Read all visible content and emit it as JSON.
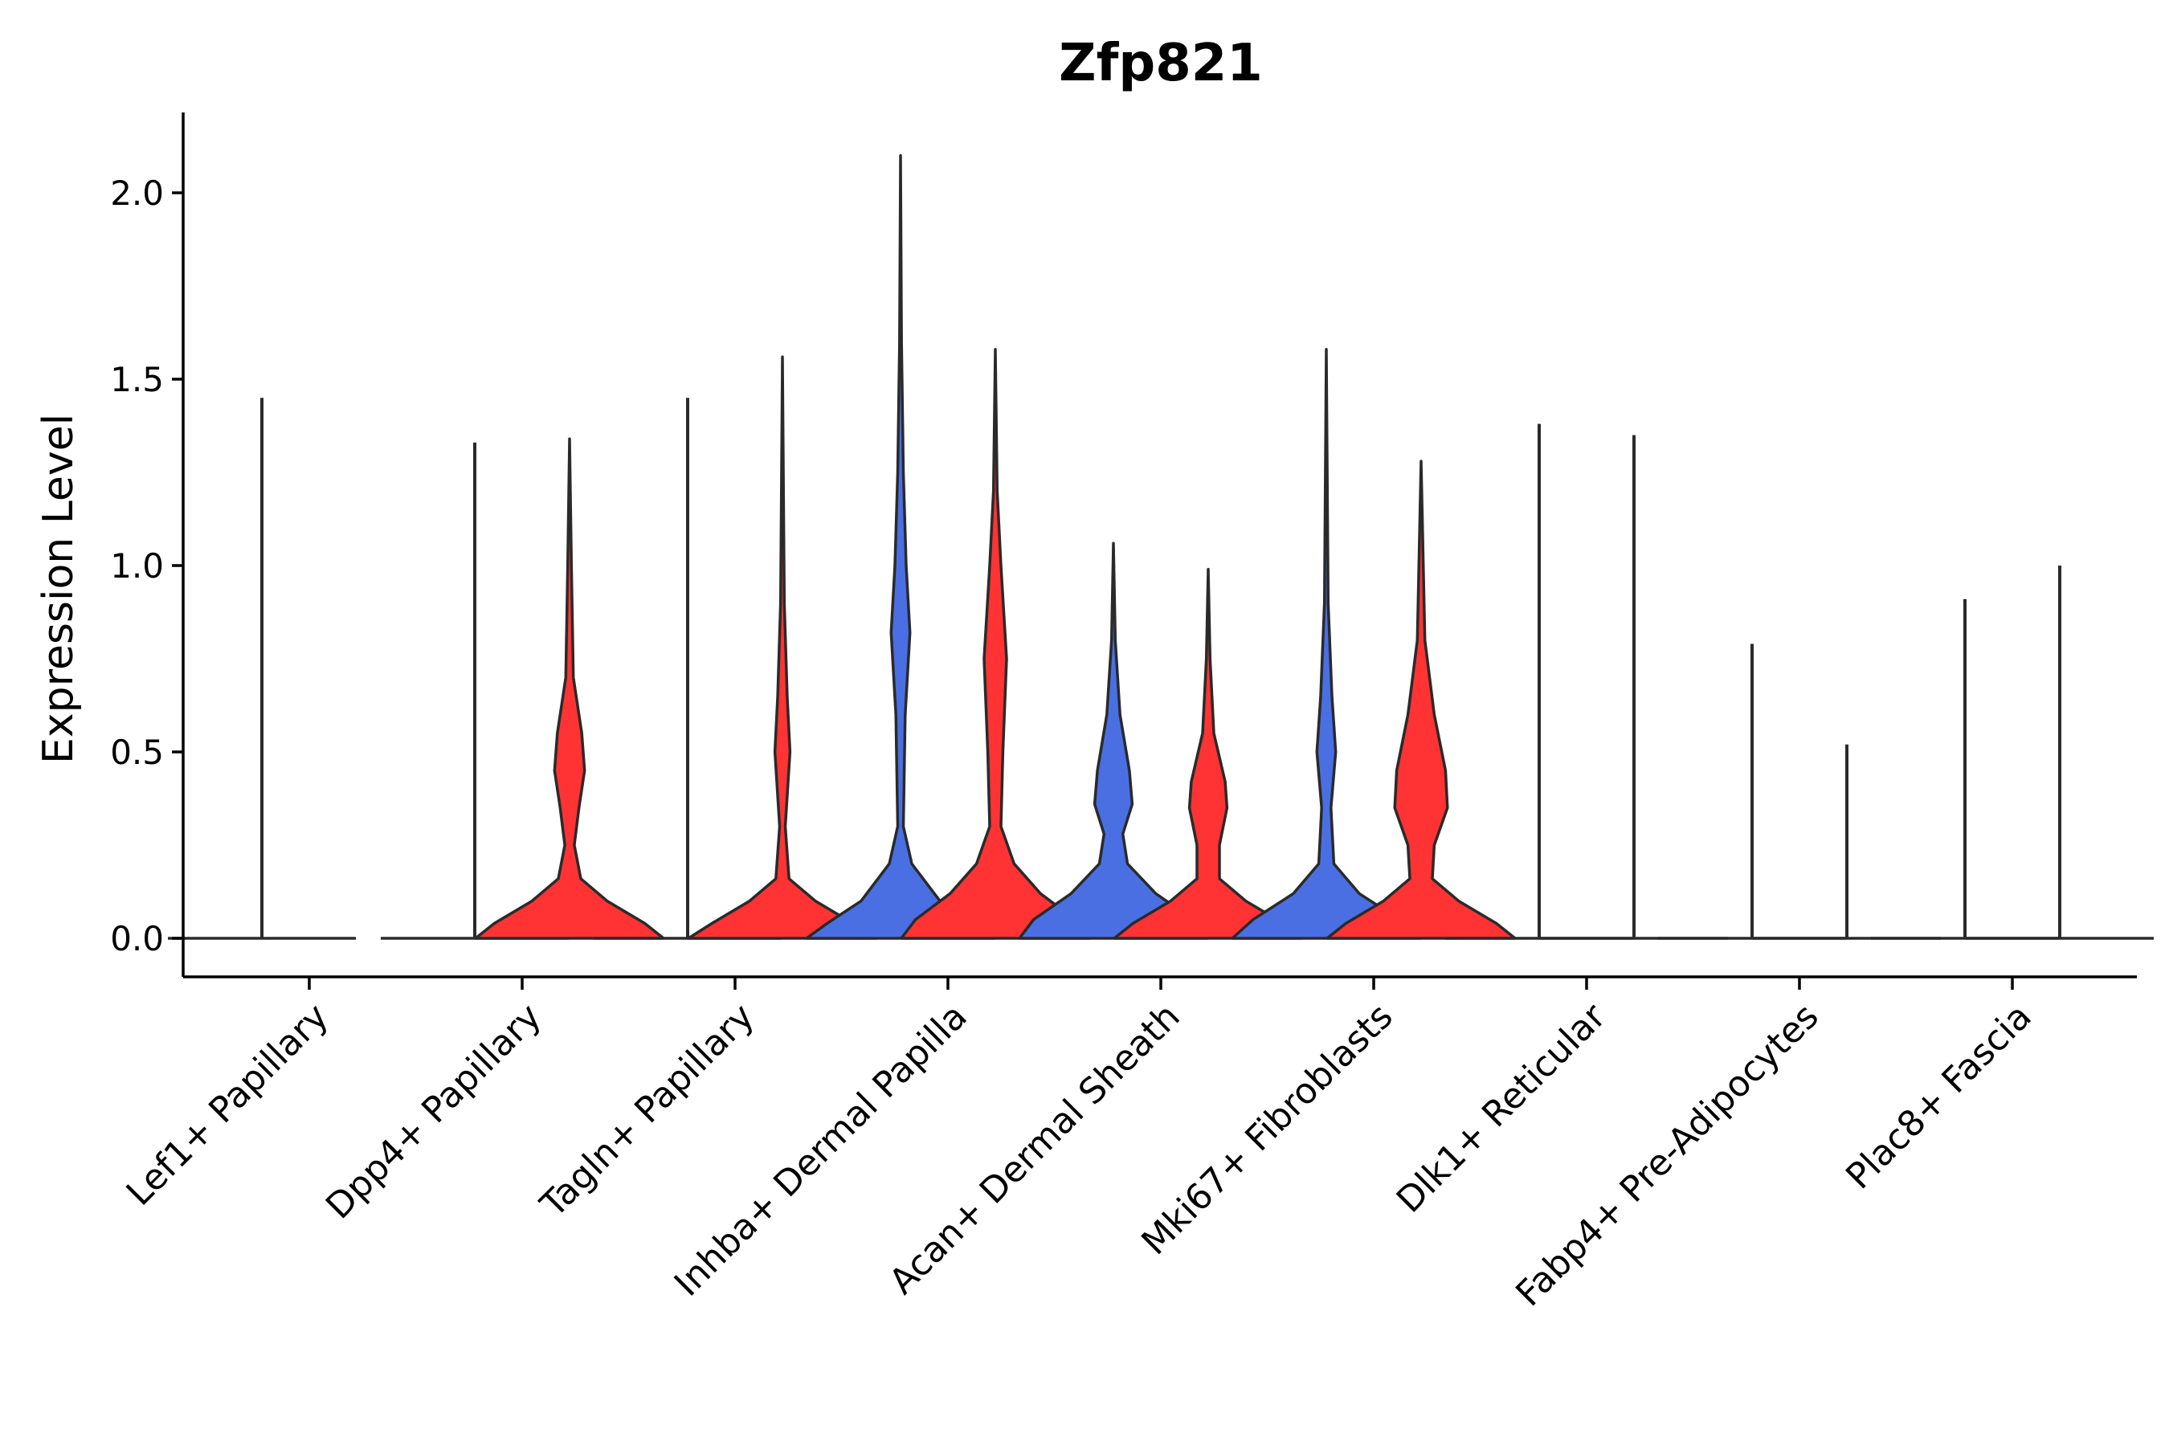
{
  "chart_data": {
    "type": "violin",
    "title": "Zfp821",
    "xlabel": "",
    "ylabel": "Expression Level",
    "ylim": [
      -0.1,
      2.2
    ],
    "yticks": [
      0.0,
      0.5,
      1.0,
      1.5,
      2.0
    ],
    "ytick_labels": [
      "0.0",
      "0.5",
      "1.0",
      "1.5",
      "2.0"
    ],
    "colors": {
      "group_1": "#4A6FE3",
      "group_2": "#FF3333"
    },
    "categories": [
      "Lef1+ Papillary",
      "Dpp4+ Papillary",
      "Tagln+ Papillary",
      "Inhba+ Dermal Papilla",
      "Acan+ Dermal Sheath",
      "Mki67+ Fibroblasts",
      "Dlk1+ Reticular",
      "Fabp4+ Pre-Adipocytes",
      "Plac8+ Fascia"
    ],
    "series": [
      {
        "name": "group_1",
        "color": "#4A6FE3",
        "max_values": [
          1.45,
          1.33,
          1.45,
          2.1,
          1.06,
          1.58,
          1.38,
          0.79,
          0.91
        ],
        "density": [
          [
            [
              0,
              1.0
            ],
            [
              0.03,
              0.2
            ],
            [
              1.45,
              0
            ]
          ],
          [
            [
              0,
              1.0
            ],
            [
              0.03,
              0.2
            ],
            [
              1.33,
              0
            ]
          ],
          [
            [
              0,
              1.0
            ],
            [
              0.03,
              0.2
            ],
            [
              1.45,
              0
            ]
          ],
          [
            [
              0,
              1.0
            ],
            [
              0.04,
              0.78
            ],
            [
              0.1,
              0.42
            ],
            [
              0.2,
              0.12
            ],
            [
              0.3,
              0.03
            ],
            [
              0.6,
              0.05
            ],
            [
              0.82,
              0.1
            ],
            [
              1.0,
              0.06
            ],
            [
              1.25,
              0.03
            ],
            [
              1.6,
              0.01
            ],
            [
              2.1,
              0
            ]
          ],
          [
            [
              0,
              1.0
            ],
            [
              0.05,
              0.85
            ],
            [
              0.12,
              0.45
            ],
            [
              0.2,
              0.15
            ],
            [
              0.28,
              0.1
            ],
            [
              0.36,
              0.2
            ],
            [
              0.45,
              0.17
            ],
            [
              0.6,
              0.07
            ],
            [
              0.8,
              0.02
            ],
            [
              1.06,
              0
            ]
          ],
          [
            [
              0,
              1.0
            ],
            [
              0.05,
              0.78
            ],
            [
              0.12,
              0.35
            ],
            [
              0.2,
              0.08
            ],
            [
              0.35,
              0.05
            ],
            [
              0.5,
              0.1
            ],
            [
              0.65,
              0.06
            ],
            [
              0.9,
              0.02
            ],
            [
              1.58,
              0
            ]
          ],
          [
            [
              0,
              1.0
            ],
            [
              0.03,
              0.2
            ],
            [
              1.38,
              0
            ]
          ],
          [
            [
              0,
              1.0
            ],
            [
              0.03,
              0.2
            ],
            [
              0.79,
              0
            ]
          ],
          [
            [
              0,
              1.0
            ],
            [
              0.03,
              0.2
            ],
            [
              0.91,
              0
            ]
          ]
        ]
      },
      {
        "name": "group_2",
        "color": "#FF3333",
        "max_values": [
          null,
          1.34,
          1.56,
          1.58,
          0.99,
          1.28,
          1.35,
          0.52,
          1.0
        ],
        "density": [
          null,
          [
            [
              0,
              1.0
            ],
            [
              0.04,
              0.8
            ],
            [
              0.1,
              0.4
            ],
            [
              0.16,
              0.12
            ],
            [
              0.25,
              0.05
            ],
            [
              0.35,
              0.1
            ],
            [
              0.45,
              0.16
            ],
            [
              0.55,
              0.13
            ],
            [
              0.7,
              0.04
            ],
            [
              1.0,
              0.02
            ],
            [
              1.34,
              0
            ]
          ],
          [
            [
              0,
              1.0
            ],
            [
              0.04,
              0.75
            ],
            [
              0.1,
              0.35
            ],
            [
              0.16,
              0.07
            ],
            [
              0.3,
              0.03
            ],
            [
              0.5,
              0.08
            ],
            [
              0.65,
              0.05
            ],
            [
              0.9,
              0.02
            ],
            [
              1.56,
              0
            ]
          ],
          [
            [
              0,
              1.0
            ],
            [
              0.05,
              0.85
            ],
            [
              0.12,
              0.48
            ],
            [
              0.2,
              0.2
            ],
            [
              0.3,
              0.06
            ],
            [
              0.5,
              0.08
            ],
            [
              0.75,
              0.12
            ],
            [
              1.0,
              0.06
            ],
            [
              1.2,
              0.02
            ],
            [
              1.58,
              0
            ]
          ],
          [
            [
              0,
              1.0
            ],
            [
              0.04,
              0.8
            ],
            [
              0.1,
              0.4
            ],
            [
              0.16,
              0.12
            ],
            [
              0.25,
              0.12
            ],
            [
              0.35,
              0.2
            ],
            [
              0.42,
              0.18
            ],
            [
              0.55,
              0.06
            ],
            [
              0.75,
              0.02
            ],
            [
              0.99,
              0
            ]
          ],
          [
            [
              0,
              1.0
            ],
            [
              0.04,
              0.8
            ],
            [
              0.1,
              0.4
            ],
            [
              0.16,
              0.12
            ],
            [
              0.25,
              0.14
            ],
            [
              0.35,
              0.28
            ],
            [
              0.45,
              0.26
            ],
            [
              0.6,
              0.14
            ],
            [
              0.8,
              0.04
            ],
            [
              1.28,
              0
            ]
          ],
          [
            [
              0,
              1.0
            ],
            [
              0.03,
              0.2
            ],
            [
              1.35,
              0
            ]
          ],
          [
            [
              0,
              1.0
            ],
            [
              0.03,
              0.2
            ],
            [
              0.52,
              0
            ]
          ],
          [
            [
              0,
              1.0
            ],
            [
              0.03,
              0.2
            ],
            [
              1.0,
              0
            ]
          ]
        ]
      }
    ]
  }
}
